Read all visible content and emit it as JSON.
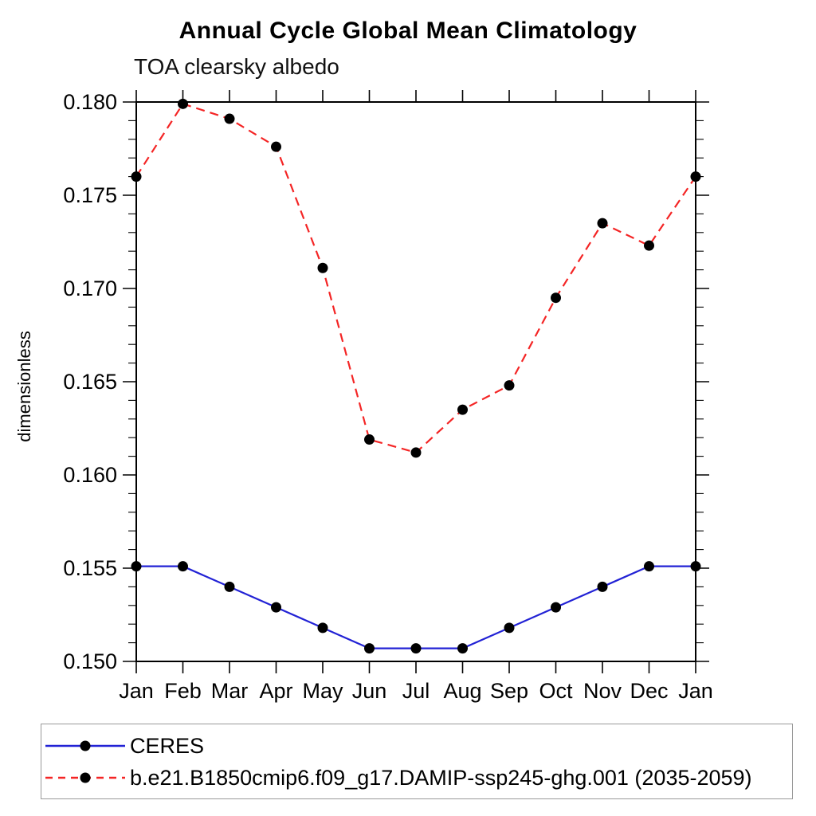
{
  "page": {
    "background": "#ffffff",
    "axis_color": "#000000"
  },
  "chart_data": {
    "type": "line",
    "title": "Annual Cycle Global Mean Climatology",
    "subtitle": "TOA clearsky albedo",
    "ylabel": "dimensionless",
    "xlabel": "",
    "categories": [
      "Jan",
      "Feb",
      "Mar",
      "Apr",
      "May",
      "Jun",
      "Jul",
      "Aug",
      "Sep",
      "Oct",
      "Nov",
      "Dec",
      "Jan"
    ],
    "ylim": [
      0.15,
      0.18
    ],
    "ytick_major_step": 0.005,
    "ytick_minor_step": 0.001,
    "ytick_labels": [
      "0.150",
      "0.155",
      "0.160",
      "0.165",
      "0.170",
      "0.175",
      "0.180"
    ],
    "grid": false,
    "legend_position": "bottom-box",
    "series": [
      {
        "name": "CERES",
        "color": "#2222d5",
        "style": "solid",
        "marker": "circle",
        "marker_color": "#000000",
        "values": [
          0.1551,
          0.1551,
          0.154,
          0.1529,
          0.1518,
          0.1507,
          0.1507,
          0.1507,
          0.1518,
          0.1529,
          0.154,
          0.1551,
          0.1551
        ]
      },
      {
        "name": "b.e21.B1850cmip6.f09_g17.DAMIP-ssp245-ghg.001 (2035-2059)",
        "color": "#f42525",
        "style": "dashed",
        "marker": "circle",
        "marker_color": "#000000",
        "values": [
          0.176,
          0.1799,
          0.1791,
          0.1776,
          0.1711,
          0.1619,
          0.1612,
          0.1635,
          0.1648,
          0.1695,
          0.1735,
          0.1723,
          0.176
        ]
      }
    ]
  }
}
